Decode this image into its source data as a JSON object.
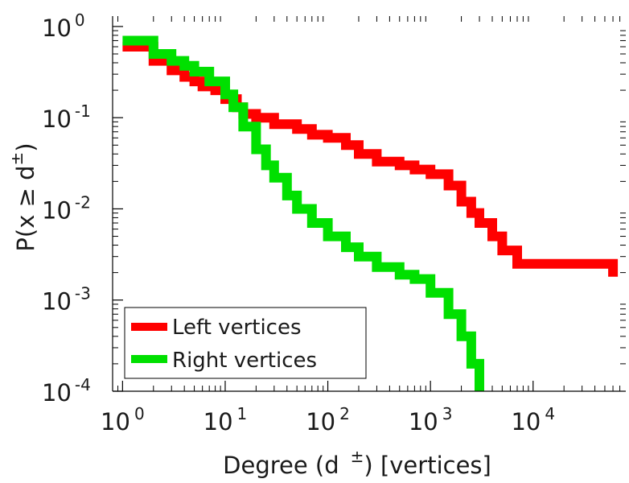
{
  "chart_data": {
    "type": "line",
    "title": "",
    "xlabel": "Degree (d ±) [vertices]",
    "xlabel_parts": {
      "prefix": "Degree (d",
      "sup": "±",
      "suffix": ") [vertices]"
    },
    "ylabel": "P(x ≥ d ±)",
    "ylabel_parts": {
      "prefix": "P(x ≥ d",
      "sup": "±",
      "suffix": ")"
    },
    "x_scale": "log",
    "y_scale": "log",
    "xlim": [
      0.8,
      80000
    ],
    "ylim": [
      0.0001,
      1.3
    ],
    "x_ticks": [
      {
        "value": 1,
        "base": "10",
        "exp": "0"
      },
      {
        "value": 10,
        "base": "10",
        "exp": "1"
      },
      {
        "value": 100,
        "base": "10",
        "exp": "2"
      },
      {
        "value": 1000,
        "base": "10",
        "exp": "3"
      },
      {
        "value": 10000,
        "base": "10",
        "exp": "4"
      }
    ],
    "y_ticks": [
      {
        "value": 1,
        "base": "10",
        "exp": "0"
      },
      {
        "value": 0.1,
        "base": "10",
        "exp": "-1"
      },
      {
        "value": 0.01,
        "base": "10",
        "exp": "-2"
      },
      {
        "value": 0.001,
        "base": "10",
        "exp": "-3"
      },
      {
        "value": 0.0001,
        "base": "10",
        "exp": "-4"
      }
    ],
    "grid": false,
    "legend": {
      "position": "bottom-left"
    },
    "series": [
      {
        "name": "Left vertices",
        "color": "#ff0000",
        "step": true,
        "x": [
          1,
          2,
          3,
          4,
          5,
          6,
          8,
          10,
          13,
          15,
          20,
          30,
          50,
          70,
          100,
          150,
          200,
          300,
          500,
          700,
          1000,
          1500,
          2000,
          2500,
          3000,
          4000,
          5000,
          7000,
          10000,
          20000,
          60000
        ],
        "y": [
          0.6,
          0.42,
          0.33,
          0.28,
          0.25,
          0.22,
          0.2,
          0.16,
          0.13,
          0.11,
          0.1,
          0.085,
          0.075,
          0.065,
          0.06,
          0.05,
          0.04,
          0.033,
          0.03,
          0.027,
          0.024,
          0.018,
          0.012,
          0.009,
          0.007,
          0.005,
          0.0035,
          0.0025,
          0.0025,
          0.0025,
          0.0018
        ]
      },
      {
        "name": "Right vertices",
        "color": "#00e000",
        "step": true,
        "x": [
          1,
          2,
          3,
          4,
          5,
          7,
          10,
          12,
          15,
          20,
          25,
          30,
          40,
          50,
          70,
          100,
          150,
          200,
          300,
          500,
          700,
          1000,
          1500,
          2000,
          2500,
          3000
        ],
        "y": [
          0.7,
          0.5,
          0.42,
          0.37,
          0.32,
          0.25,
          0.18,
          0.13,
          0.08,
          0.045,
          0.03,
          0.022,
          0.014,
          0.01,
          0.007,
          0.005,
          0.0038,
          0.003,
          0.0023,
          0.0019,
          0.0017,
          0.0012,
          0.0007,
          0.0004,
          0.0002,
          0.0001
        ]
      }
    ]
  }
}
